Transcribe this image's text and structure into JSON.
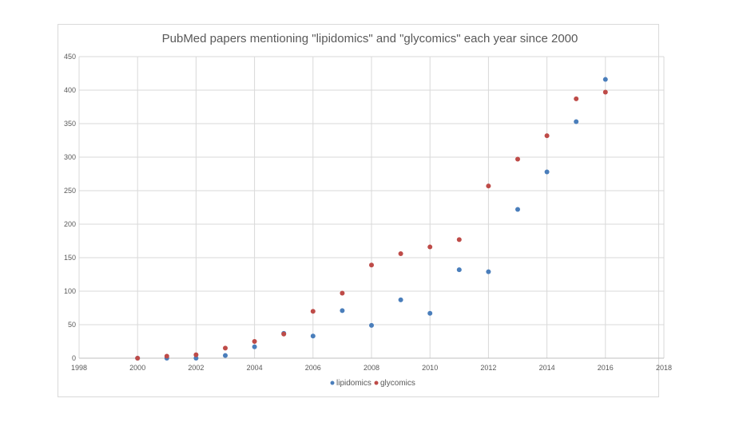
{
  "chart_data": {
    "type": "scatter",
    "title": "PubMed papers mentioning \"lipidomics\" and \"glycomics\" each year since 2000",
    "xlabel": "",
    "ylabel": "",
    "xlim": [
      1998,
      2018
    ],
    "ylim": [
      0,
      450
    ],
    "x_ticks": [
      1998,
      2000,
      2002,
      2004,
      2006,
      2008,
      2010,
      2012,
      2014,
      2016,
      2018
    ],
    "y_ticks": [
      0,
      50,
      100,
      150,
      200,
      250,
      300,
      350,
      400,
      450
    ],
    "grid": true,
    "legend_position": "bottom",
    "series": [
      {
        "name": "lipidomics",
        "color": "#4a7ebb",
        "x": [
          2000,
          2001,
          2002,
          2003,
          2004,
          2005,
          2006,
          2007,
          2008,
          2009,
          2010,
          2011,
          2012,
          2013,
          2014,
          2015,
          2016
        ],
        "y": [
          0,
          0,
          0,
          4,
          17,
          37,
          33,
          71,
          49,
          87,
          67,
          132,
          129,
          222,
          278,
          353,
          416
        ]
      },
      {
        "name": "glycomics",
        "color": "#be4b48",
        "x": [
          2000,
          2001,
          2002,
          2003,
          2004,
          2005,
          2006,
          2007,
          2008,
          2009,
          2010,
          2011,
          2012,
          2013,
          2014,
          2015,
          2016
        ],
        "y": [
          0,
          3,
          5,
          15,
          25,
          36,
          70,
          97,
          139,
          156,
          166,
          177,
          257,
          297,
          332,
          387,
          397
        ]
      }
    ]
  }
}
